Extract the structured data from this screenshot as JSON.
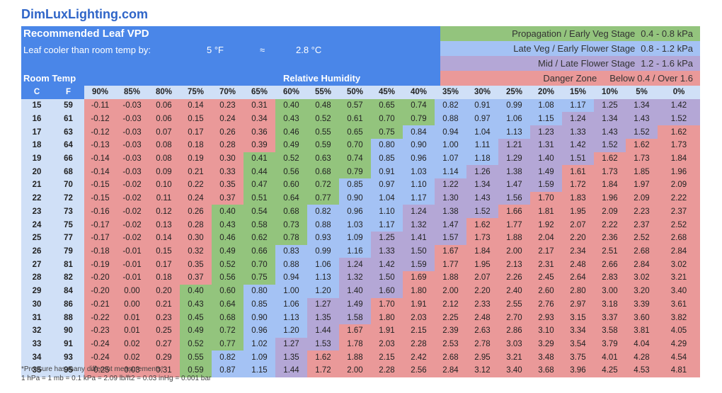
{
  "site": "DimLuxLighting.com",
  "header": {
    "title": "Recommended Leaf VPD",
    "subtitle": "Leaf cooler than room temp by:",
    "offset_f": "5 °F",
    "approx": "≈",
    "offset_c": "2.8 °C",
    "room_temp": "Room Temp",
    "relative_humidity": "Relative Humidity"
  },
  "legend": [
    {
      "label": "Propagation / Early Veg Stage",
      "range": "0.4 - 0.8 kPa",
      "color": "#93c47d"
    },
    {
      "label": "Late Veg / Early Flower Stage",
      "range": "0.8 - 1.2 kPa",
      "color": "#a4c2f4"
    },
    {
      "label": "Mid / Late Flower Stage",
      "range": "1.2 - 1.6 kPa",
      "color": "#b4a7d6"
    },
    {
      "label": "Danger Zone",
      "range": "Below 0.4 / Over 1.6",
      "color": "#ea9999"
    }
  ],
  "chart_data": {
    "type": "table",
    "title": "Recommended Leaf VPD",
    "row_header_labels": [
      "C",
      "F"
    ],
    "columns": [
      "90%",
      "85%",
      "80%",
      "75%",
      "70%",
      "65%",
      "60%",
      "55%",
      "50%",
      "45%",
      "40%",
      "35%",
      "30%",
      "25%",
      "20%",
      "15%",
      "10%",
      "5%",
      "0%"
    ],
    "rows": [
      {
        "c": "15",
        "f": "59",
        "values": [
          "-0.11",
          "-0.03",
          "0.06",
          "0.14",
          "0.23",
          "0.31",
          "0.40",
          "0.48",
          "0.57",
          "0.65",
          "0.74",
          "0.82",
          "0.91",
          "0.99",
          "1.08",
          "1.17",
          "1.25",
          "1.34",
          "1.42"
        ]
      },
      {
        "c": "16",
        "f": "61",
        "values": [
          "-0.12",
          "-0.03",
          "0.06",
          "0.15",
          "0.24",
          "0.34",
          "0.43",
          "0.52",
          "0.61",
          "0.70",
          "0.79",
          "0.88",
          "0.97",
          "1.06",
          "1.15",
          "1.24",
          "1.34",
          "1.43",
          "1.52"
        ]
      },
      {
        "c": "17",
        "f": "63",
        "values": [
          "-0.12",
          "-0.03",
          "0.07",
          "0.17",
          "0.26",
          "0.36",
          "0.46",
          "0.55",
          "0.65",
          "0.75",
          "0.84",
          "0.94",
          "1.04",
          "1.13",
          "1.23",
          "1.33",
          "1.43",
          "1.52",
          "1.62"
        ]
      },
      {
        "c": "18",
        "f": "64",
        "values": [
          "-0.13",
          "-0.03",
          "0.08",
          "0.18",
          "0.28",
          "0.39",
          "0.49",
          "0.59",
          "0.70",
          "0.80",
          "0.90",
          "1.00",
          "1.11",
          "1.21",
          "1.31",
          "1.42",
          "1.52",
          "1.62",
          "1.73"
        ]
      },
      {
        "c": "19",
        "f": "66",
        "values": [
          "-0.14",
          "-0.03",
          "0.08",
          "0.19",
          "0.30",
          "0.41",
          "0.52",
          "0.63",
          "0.74",
          "0.85",
          "0.96",
          "1.07",
          "1.18",
          "1.29",
          "1.40",
          "1.51",
          "1.62",
          "1.73",
          "1.84"
        ]
      },
      {
        "c": "20",
        "f": "68",
        "values": [
          "-0.14",
          "-0.03",
          "0.09",
          "0.21",
          "0.33",
          "0.44",
          "0.56",
          "0.68",
          "0.79",
          "0.91",
          "1.03",
          "1.14",
          "1.26",
          "1.38",
          "1.49",
          "1.61",
          "1.73",
          "1.85",
          "1.96"
        ]
      },
      {
        "c": "21",
        "f": "70",
        "values": [
          "-0.15",
          "-0.02",
          "0.10",
          "0.22",
          "0.35",
          "0.47",
          "0.60",
          "0.72",
          "0.85",
          "0.97",
          "1.10",
          "1.22",
          "1.34",
          "1.47",
          "1.59",
          "1.72",
          "1.84",
          "1.97",
          "2.09"
        ]
      },
      {
        "c": "22",
        "f": "72",
        "values": [
          "-0.15",
          "-0.02",
          "0.11",
          "0.24",
          "0.37",
          "0.51",
          "0.64",
          "0.77",
          "0.90",
          "1.04",
          "1.17",
          "1.30",
          "1.43",
          "1.56",
          "1.70",
          "1.83",
          "1.96",
          "2.09",
          "2.22"
        ]
      },
      {
        "c": "23",
        "f": "73",
        "values": [
          "-0.16",
          "-0.02",
          "0.12",
          "0.26",
          "0.40",
          "0.54",
          "0.68",
          "0.82",
          "0.96",
          "1.10",
          "1.24",
          "1.38",
          "1.52",
          "1.66",
          "1.81",
          "1.95",
          "2.09",
          "2.23",
          "2.37"
        ]
      },
      {
        "c": "24",
        "f": "75",
        "values": [
          "-0.17",
          "-0.02",
          "0.13",
          "0.28",
          "0.43",
          "0.58",
          "0.73",
          "0.88",
          "1.03",
          "1.17",
          "1.32",
          "1.47",
          "1.62",
          "1.77",
          "1.92",
          "2.07",
          "2.22",
          "2.37",
          "2.52"
        ]
      },
      {
        "c": "25",
        "f": "77",
        "values": [
          "-0.17",
          "-0.02",
          "0.14",
          "0.30",
          "0.46",
          "0.62",
          "0.78",
          "0.93",
          "1.09",
          "1.25",
          "1.41",
          "1.57",
          "1.73",
          "1.88",
          "2.04",
          "2.20",
          "2.36",
          "2.52",
          "2.68"
        ]
      },
      {
        "c": "26",
        "f": "79",
        "values": [
          "-0.18",
          "-0.01",
          "0.15",
          "0.32",
          "0.49",
          "0.66",
          "0.83",
          "0.99",
          "1.16",
          "1.33",
          "1.50",
          "1.67",
          "1.84",
          "2.00",
          "2.17",
          "2.34",
          "2.51",
          "2.68",
          "2.84"
        ]
      },
      {
        "c": "27",
        "f": "81",
        "values": [
          "-0.19",
          "-0.01",
          "0.17",
          "0.35",
          "0.52",
          "0.70",
          "0.88",
          "1.06",
          "1.24",
          "1.42",
          "1.59",
          "1.77",
          "1.95",
          "2.13",
          "2.31",
          "2.48",
          "2.66",
          "2.84",
          "3.02"
        ]
      },
      {
        "c": "28",
        "f": "82",
        "values": [
          "-0.20",
          "-0.01",
          "0.18",
          "0.37",
          "0.56",
          "0.75",
          "0.94",
          "1.13",
          "1.32",
          "1.50",
          "1.69",
          "1.88",
          "2.07",
          "2.26",
          "2.45",
          "2.64",
          "2.83",
          "3.02",
          "3.21"
        ]
      },
      {
        "c": "29",
        "f": "84",
        "values": [
          "-0.20",
          "0.00",
          "0.20",
          "0.40",
          "0.60",
          "0.80",
          "1.00",
          "1.20",
          "1.40",
          "1.60",
          "1.80",
          "2.00",
          "2.20",
          "2.40",
          "2.60",
          "2.80",
          "3.00",
          "3.20",
          "3.40"
        ]
      },
      {
        "c": "30",
        "f": "86",
        "values": [
          "-0.21",
          "0.00",
          "0.21",
          "0.43",
          "0.64",
          "0.85",
          "1.06",
          "1.27",
          "1.49",
          "1.70",
          "1.91",
          "2.12",
          "2.33",
          "2.55",
          "2.76",
          "2.97",
          "3.18",
          "3.39",
          "3.61"
        ]
      },
      {
        "c": "31",
        "f": "88",
        "values": [
          "-0.22",
          "0.01",
          "0.23",
          "0.45",
          "0.68",
          "0.90",
          "1.13",
          "1.35",
          "1.58",
          "1.80",
          "2.03",
          "2.25",
          "2.48",
          "2.70",
          "2.93",
          "3.15",
          "3.37",
          "3.60",
          "3.82"
        ]
      },
      {
        "c": "32",
        "f": "90",
        "values": [
          "-0.23",
          "0.01",
          "0.25",
          "0.49",
          "0.72",
          "0.96",
          "1.20",
          "1.44",
          "1.67",
          "1.91",
          "2.15",
          "2.39",
          "2.63",
          "2.86",
          "3.10",
          "3.34",
          "3.58",
          "3.81",
          "4.05"
        ]
      },
      {
        "c": "33",
        "f": "91",
        "values": [
          "-0.24",
          "0.02",
          "0.27",
          "0.52",
          "0.77",
          "1.02",
          "1.27",
          "1.53",
          "1.78",
          "2.03",
          "2.28",
          "2.53",
          "2.78",
          "3.03",
          "3.29",
          "3.54",
          "3.79",
          "4.04",
          "4.29"
        ]
      },
      {
        "c": "34",
        "f": "93",
        "values": [
          "-0.24",
          "0.02",
          "0.29",
          "0.55",
          "0.82",
          "1.09",
          "1.35",
          "1.62",
          "1.88",
          "2.15",
          "2.42",
          "2.68",
          "2.95",
          "3.21",
          "3.48",
          "3.75",
          "4.01",
          "4.28",
          "4.54"
        ]
      },
      {
        "c": "35",
        "f": "95",
        "values": [
          "-0.25",
          "0.03",
          "0.31",
          "0.59",
          "0.87",
          "1.15",
          "1.44",
          "1.72",
          "2.00",
          "2.28",
          "2.56",
          "2.84",
          "3.12",
          "3.40",
          "3.68",
          "3.96",
          "4.25",
          "4.53",
          "4.81"
        ]
      }
    ]
  },
  "notes": {
    "line1": "*Pressure has many different measurements!",
    "line2": "1 hPa = 1 mb = 0.1 kPa = 2.09 lb/ft2 = 0.03 inHg = 0.001 bar"
  }
}
